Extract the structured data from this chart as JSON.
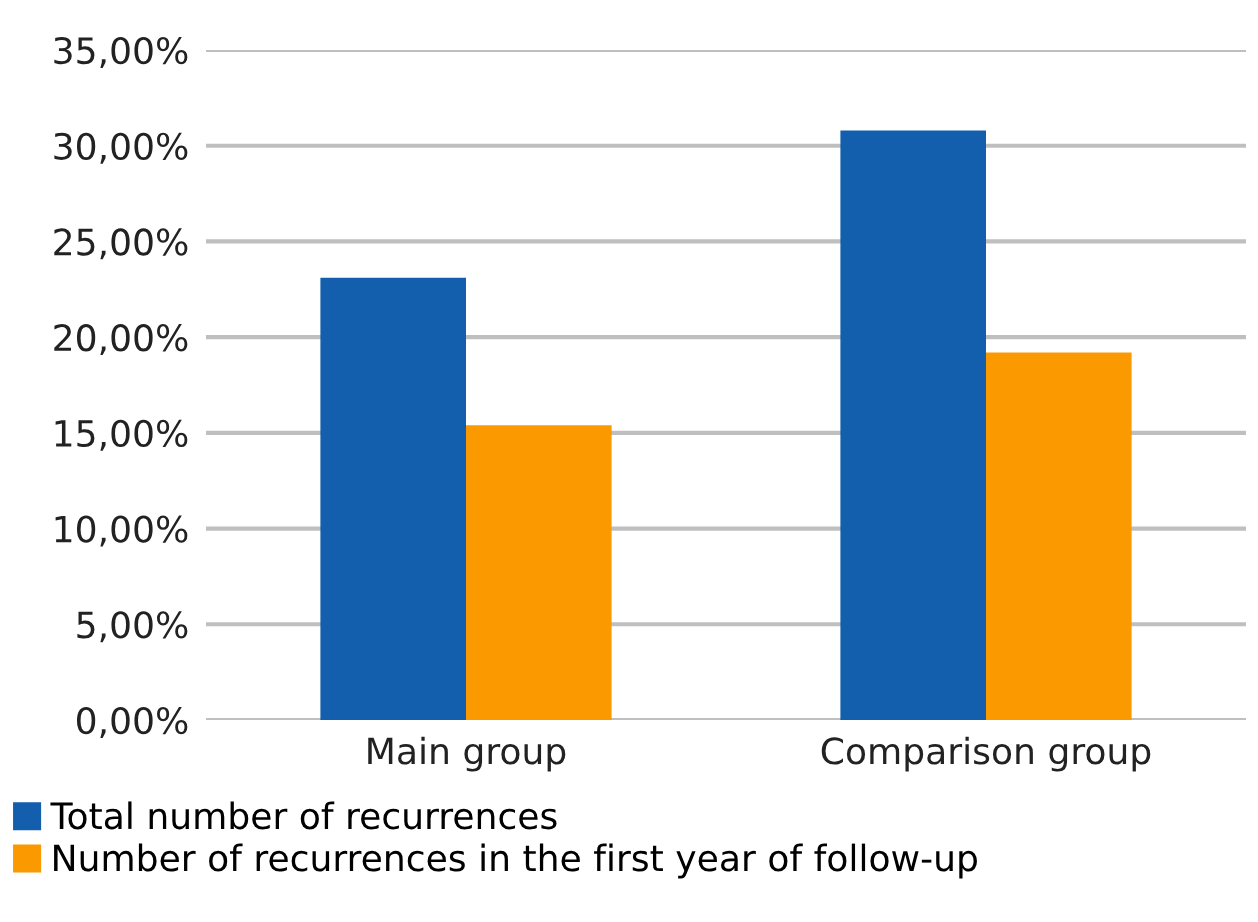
{
  "chart_data": {
    "type": "bar",
    "categories": [
      "Main group",
      "Comparison group"
    ],
    "series": [
      {
        "name": "Total number of recurrences",
        "color": "#135fae",
        "values": [
          23.1,
          30.8
        ]
      },
      {
        "name": "Number of recurrences in the first year of follow-up",
        "color": "#fb9900",
        "values": [
          15.4,
          19.2
        ]
      }
    ],
    "ylim": [
      0,
      35
    ],
    "yticks": [
      {
        "value": 0,
        "label": "0,00%"
      },
      {
        "value": 5,
        "label": "5,00%"
      },
      {
        "value": 10,
        "label": "10,00%"
      },
      {
        "value": 15,
        "label": "15,00%"
      },
      {
        "value": 20,
        "label": "20,00%"
      },
      {
        "value": 25,
        "label": "25,00%"
      },
      {
        "value": 30,
        "label": "30,00%"
      },
      {
        "value": 35,
        "label": "35,00%"
      }
    ],
    "grid": "y",
    "legend": "bottom left"
  }
}
